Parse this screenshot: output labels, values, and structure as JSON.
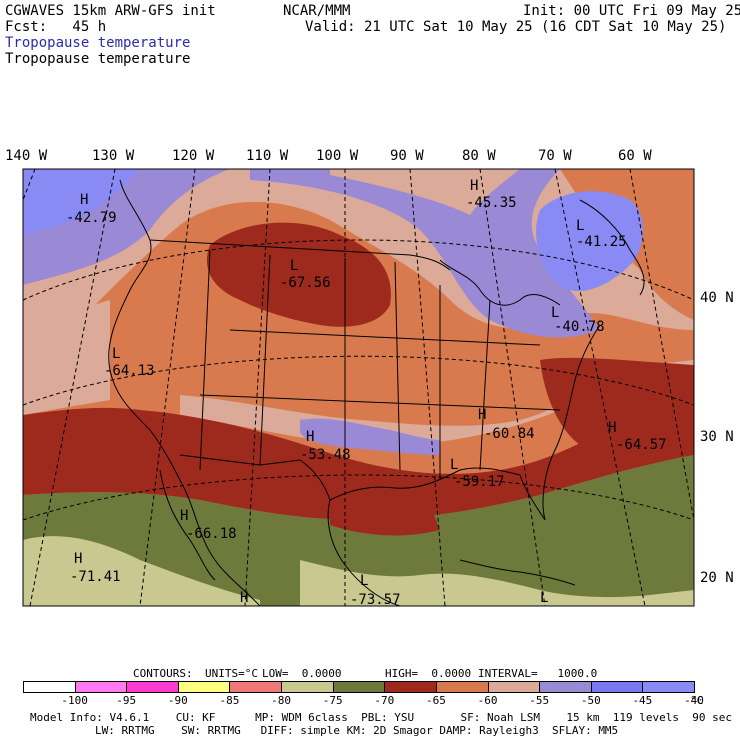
{
  "header": {
    "left1": "CGWAVES 15km ARW-GFS init",
    "center1": "NCAR/MMM",
    "right1": "Init: 00 UTC Fri 09 May 25",
    "left2": "Fcst:   45 h",
    "right2": "Valid: 21 UTC Sat 10 May 25 (16 CDT Sat 10 May 25)",
    "field_title_blue": "Tropopause temperature",
    "field_title": "Tropopause temperature"
  },
  "axes": {
    "longitudes": [
      "140 W",
      "130 W",
      "120 W",
      "110 W",
      "100 W",
      "90 W",
      "80 W",
      "70 W",
      "60 W"
    ],
    "latitudes": [
      "40 N",
      "30 N",
      "20 N"
    ]
  },
  "extrema": [
    {
      "type": "H",
      "value": "-42.79"
    },
    {
      "type": "H",
      "value": "-45.35"
    },
    {
      "type": "L",
      "value": "-41.25"
    },
    {
      "type": "L",
      "value": "-67.56"
    },
    {
      "type": "L",
      "value": "-64.13"
    },
    {
      "type": "L",
      "value": "-40.78"
    },
    {
      "type": "H",
      "value": "-53.48"
    },
    {
      "type": "H",
      "value": "-60.84"
    },
    {
      "type": "H",
      "value": "-64.57"
    },
    {
      "type": "L",
      "value": "-59.17"
    },
    {
      "type": "H",
      "value": "-66.18"
    },
    {
      "type": "H",
      "value": "-71.41"
    },
    {
      "type": "L",
      "value": "-73.57"
    },
    {
      "type": "H",
      "value": ""
    },
    {
      "type": "L",
      "value": ""
    }
  ],
  "contours": {
    "label": "CONTOURS:",
    "units": "UNITS=°C",
    "low": "LOW=  0.0000",
    "high": "HIGH=  0.0000",
    "interval": "INTERVAL=   1000.0"
  },
  "legend": {
    "ticks": [
      "-100",
      "-95",
      "-90",
      "-85",
      "-80",
      "-75",
      "-70",
      "-65",
      "-60",
      "-55",
      "-50",
      "-45",
      "-40"
    ],
    "unit": "°C",
    "colors": [
      "#ffffff",
      "#ff7af0",
      "#ff3ad0",
      "#ffff80",
      "#f07878",
      "#c8c890",
      "#6e7a3c",
      "#9e2a1e",
      "#d97a4e",
      "#dcaa98",
      "#9a8ad6",
      "#7878f0",
      "#8a8af5"
    ]
  },
  "model_info": {
    "line1": "Model Info: V4.6.1    CU: KF      MP: WDM 6class  PBL: YSU       SF: Noah LSM    15 km  119 levels  90 sec",
    "line2": "LW: RRTMG    SW: RRTMG   DIFF: simple KM: 2D Smagor DAMP: Rayleigh3  SFLAY: MM5"
  },
  "colors": {
    "purple": "#9a8ad6",
    "blue": "#7878f0",
    "pink": "#dcaa98",
    "orange": "#d97a4e",
    "dark_red": "#9e2a1e",
    "olive": "#6e7a3c",
    "tan": "#c8c890"
  }
}
